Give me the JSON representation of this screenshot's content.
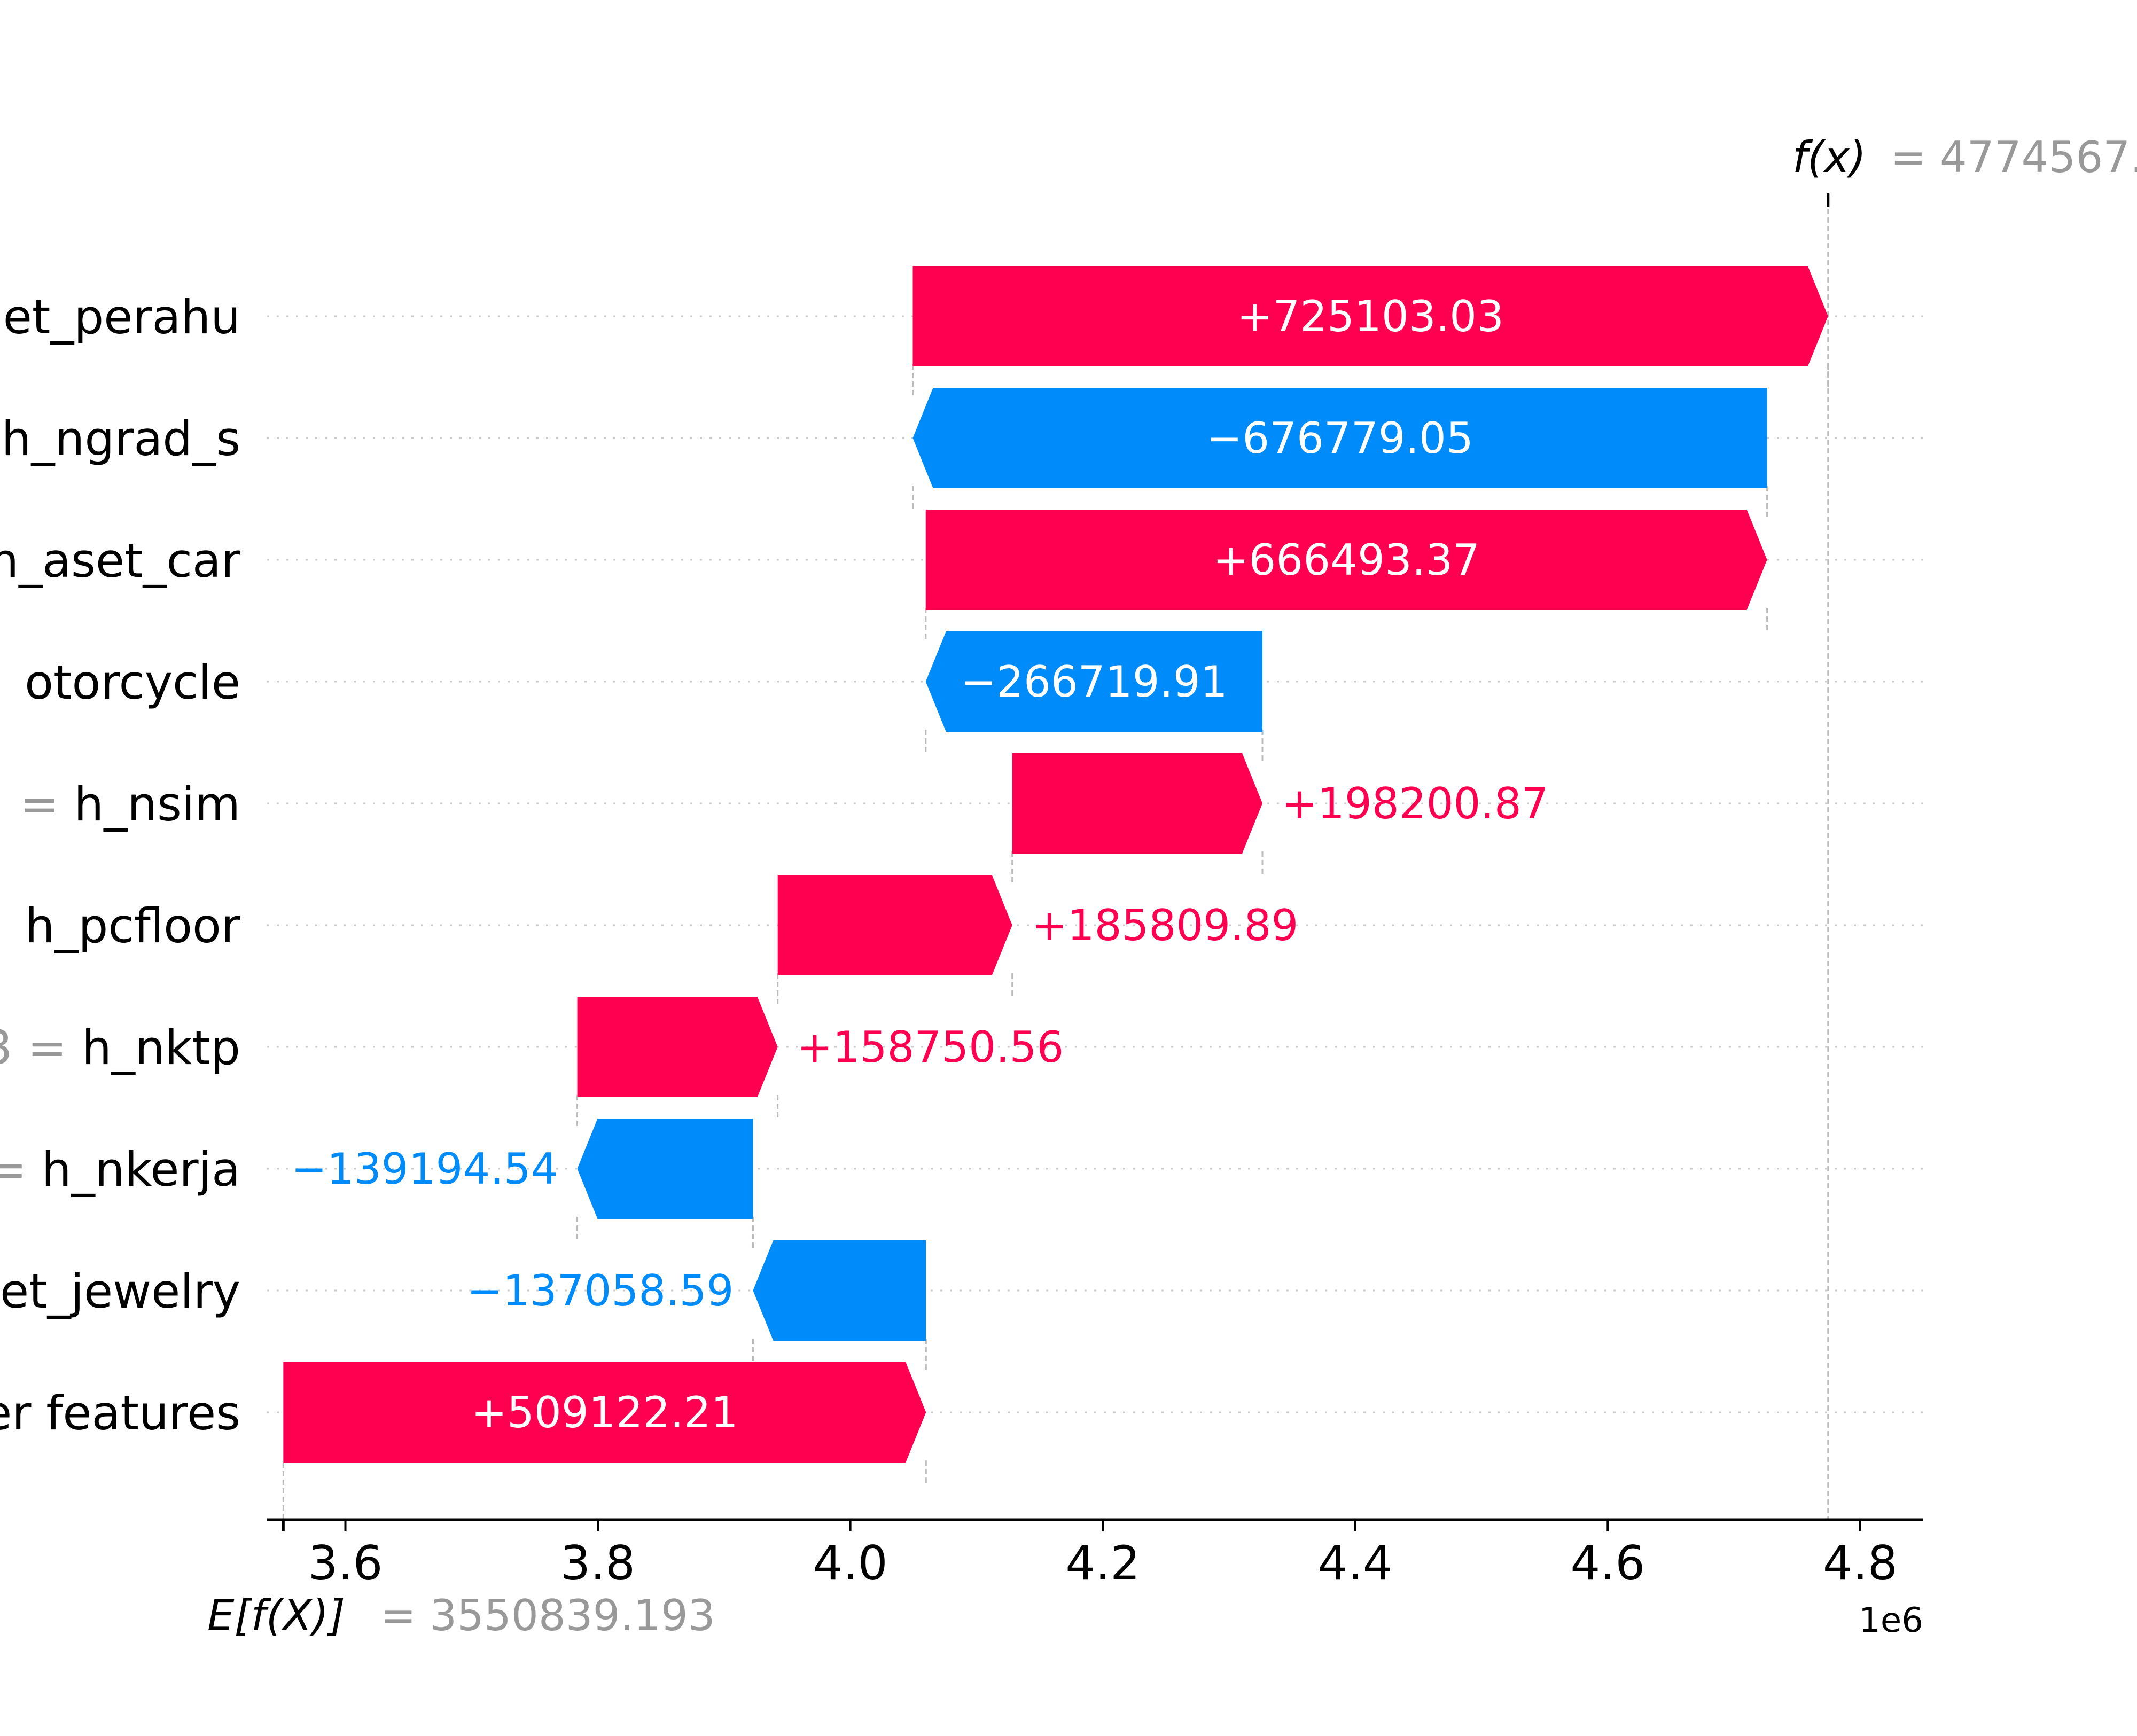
{
  "chart_data": {
    "type": "waterfall",
    "base_value": {
      "label_prefix": "E[f(X)]",
      "label_value": "= 3550839.193",
      "value": 3550839.193
    },
    "output_value": {
      "label_prefix": "f(x)",
      "label_value": "= 4774567.",
      "value": 4774567
    },
    "features": [
      {
        "label_grey": "",
        "label_name": "et_perahu",
        "value": 725103.03,
        "start": 4049464.27,
        "text": "+725103.03",
        "label_inside": true
      },
      {
        "label_grey": "",
        "label_name": "h_ngrad_s",
        "value": -676779.05,
        "start": 4726243.32,
        "text": "−676779.05",
        "label_inside": true
      },
      {
        "label_grey": "",
        "label_name": "h_aset_car",
        "value": 666493.37,
        "start": 4059749.95,
        "text": "+666493.37",
        "label_inside": true
      },
      {
        "label_grey": "",
        "label_name": "otorcycle",
        "value": -266719.91,
        "start": 4326469.86,
        "text": "−266719.91",
        "label_inside": true
      },
      {
        "label_grey": "=",
        "label_name": "h_nsim",
        "value": 198200.87,
        "start": 4128268.99,
        "text": "+198200.87",
        "label_inside": false
      },
      {
        "label_grey": "",
        "label_name": "h_pcfloor",
        "value": 185809.89,
        "start": 3942459.1,
        "text": "+185809.89",
        "label_inside": false
      },
      {
        "label_grey": "3 =",
        "label_name": "h_nktp",
        "value": 158750.56,
        "start": 3783708.54,
        "text": "+158750.56",
        "label_inside": false
      },
      {
        "label_grey": "=",
        "label_name": "h_nkerja",
        "value": -139194.54,
        "start": 3922903.08,
        "text": "−139194.54",
        "label_inside": false
      },
      {
        "label_grey": "",
        "label_name": "et_jewelry",
        "value": -137058.59,
        "start": 4059961.67,
        "text": "−137058.59",
        "label_inside": false
      },
      {
        "label_grey": "",
        "label_name": "er features",
        "value": 509122.21,
        "start": 3550839.19,
        "text": "+509122.21",
        "label_inside": true
      }
    ],
    "xaxis": {
      "ticks": [
        3600000,
        3800000,
        4000000,
        4200000,
        4400000,
        4600000,
        4800000
      ],
      "tick_labels": [
        "3.6",
        "3.8",
        "4.0",
        "4.2",
        "4.4",
        "4.6",
        "4.8"
      ],
      "offset_label": "1e6",
      "xlim": [
        3538000,
        4850000
      ]
    },
    "colors": {
      "positive": "#ff0051",
      "negative": "#008bfb",
      "grey_text": "#999999",
      "axis": "#000000"
    }
  }
}
